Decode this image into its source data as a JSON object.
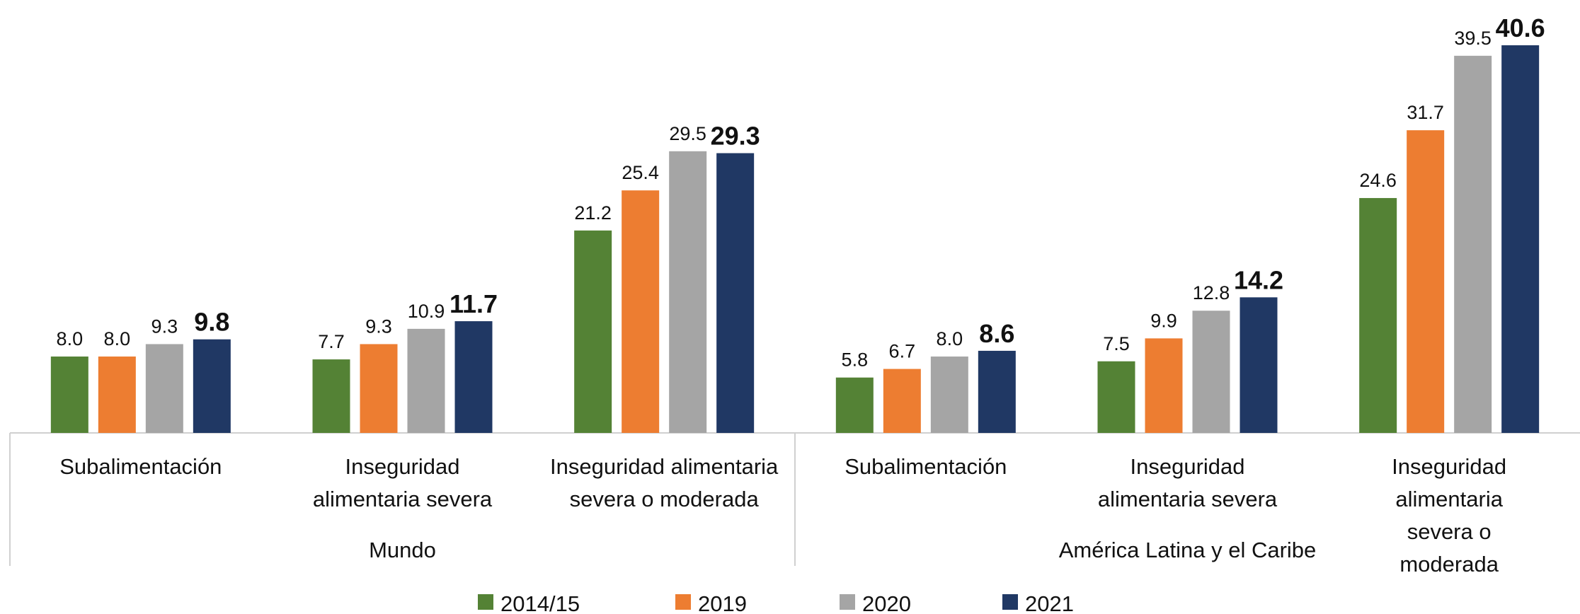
{
  "chart_data": {
    "type": "bar",
    "categories": [
      "Subalimentación",
      "Inseguridad\nalimentaria severa",
      "Inseguridad alimentaria\nsevera o moderada",
      "Subalimentación",
      "Inseguridad\nalimentaria severa",
      "Inseguridad alimentaria\nsevera o moderada"
    ],
    "groups": [
      "Mundo",
      "América Latina y el Caribe"
    ],
    "series": [
      {
        "name": "2014/15",
        "color": "#548235",
        "values": [
          8.0,
          7.7,
          21.2,
          5.8,
          7.5,
          24.6
        ],
        "value_labels": [
          "8.0",
          "7.7",
          "21.2",
          "5.8",
          "7.5",
          "24.6"
        ]
      },
      {
        "name": "2019",
        "color": "#ed7d31",
        "values": [
          8.0,
          9.3,
          25.4,
          6.7,
          9.9,
          31.7
        ],
        "value_labels": [
          "8.0",
          "9.3",
          "25.4",
          "6.7",
          "9.9",
          "31.7"
        ]
      },
      {
        "name": "2020",
        "color": "#a5a5a5",
        "values": [
          9.3,
          10.9,
          29.5,
          8.0,
          12.8,
          39.5
        ],
        "value_labels": [
          "9.3",
          "10.9",
          "29.5",
          "8.0",
          "12.8",
          "39.5"
        ]
      },
      {
        "name": "2021",
        "color": "#203864",
        "values": [
          9.8,
          11.7,
          29.3,
          8.6,
          14.2,
          40.6
        ],
        "value_labels": [
          "9.8",
          "11.7",
          "29.3",
          "8.6",
          "14.2",
          "40.6"
        ]
      }
    ]
  }
}
